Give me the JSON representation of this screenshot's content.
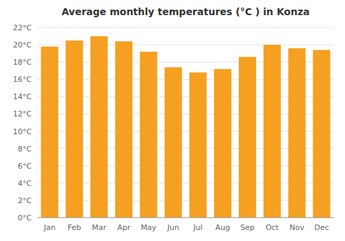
{
  "chart_data": {
    "type": "bar",
    "title": "Average monthly temperatures (°C ) in Konza",
    "categories": [
      "Jan",
      "Feb",
      "Mar",
      "Apr",
      "May",
      "Jun",
      "Jul",
      "Aug",
      "Sep",
      "Oct",
      "Nov",
      "Dec"
    ],
    "values": [
      19.8,
      20.5,
      21.0,
      20.4,
      19.2,
      17.4,
      16.8,
      17.2,
      18.6,
      20.0,
      19.6,
      19.4
    ],
    "color": "#F5A020",
    "ylim": [
      0,
      22
    ],
    "yticks": [
      {
        "value": 0,
        "label": "0°C"
      },
      {
        "value": 2,
        "label": "2°C"
      },
      {
        "value": 4,
        "label": "4°C"
      },
      {
        "value": 6,
        "label": "6°C"
      },
      {
        "value": 8,
        "label": "8°C"
      },
      {
        "value": 10,
        "label": "10°C"
      },
      {
        "value": 12,
        "label": "12°C"
      },
      {
        "value": 14,
        "label": "14°C"
      },
      {
        "value": 16,
        "label": "16°C"
      },
      {
        "value": 18,
        "label": "18°C"
      },
      {
        "value": 20,
        "label": "20°C"
      },
      {
        "value": 22,
        "label": "22°C"
      }
    ],
    "grid": true
  }
}
